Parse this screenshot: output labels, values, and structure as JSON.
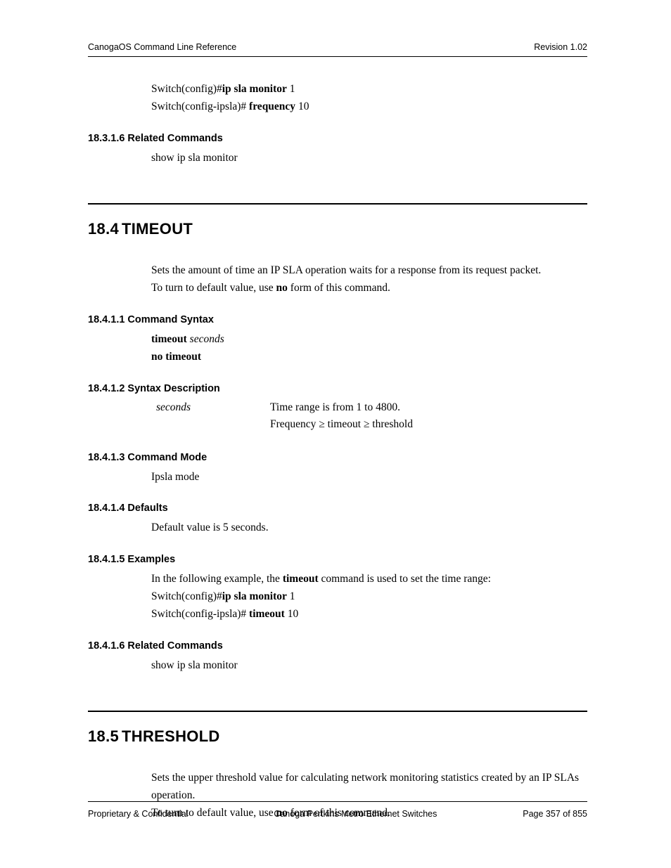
{
  "header": {
    "left": "CanogaOS Command Line Reference",
    "right": "Revision 1.02"
  },
  "footer": {
    "left": "Proprietary & Confidential",
    "center": "Canoga Pertkins Metro Ethernet Switches",
    "right": "Page 357 of 855"
  },
  "prev_example": {
    "line1_prompt": "Switch(config)#",
    "line1_cmd": "ip sla monitor",
    "line1_arg": " 1",
    "line2_prompt": "Switch(config-ipsla)# ",
    "line2_cmd": "frequency",
    "line2_arg": " 10"
  },
  "prev_related": {
    "heading": "18.3.1.6 Related Commands",
    "text": "show ip sla monitor"
  },
  "s184": {
    "heading_num": "18.4",
    "heading_text": "TIMEOUT",
    "intro_line1": "Sets the amount of time an IP SLA operation waits for a response from its request packet.",
    "intro_line2a": "To turn to default value, use ",
    "intro_line2b": "no",
    "intro_line2c": " form of this command.",
    "syntax": {
      "heading": "18.4.1.1 Command Syntax",
      "l1_cmd": "timeout",
      "l1_arg": " seconds",
      "l2": "no timeout"
    },
    "desc": {
      "heading": "18.4.1.2 Syntax Description",
      "param": "seconds",
      "row1": "Time range is from 1 to 4800.",
      "row2": "Frequency ≥ timeout ≥ threshold"
    },
    "mode": {
      "heading": "18.4.1.3 Command Mode",
      "text": "Ipsla mode"
    },
    "defaults": {
      "heading": "18.4.1.4 Defaults",
      "text": "Default value is 5 seconds."
    },
    "examples": {
      "heading": "18.4.1.5 Examples",
      "intro_a": "In the following example, the ",
      "intro_b": "timeout",
      "intro_c": " command is used to set the time range:",
      "line1_prompt": "Switch(config)#",
      "line1_cmd": "ip sla monitor",
      "line1_arg": " 1",
      "line2_prompt": "Switch(config-ipsla)# ",
      "line2_cmd": "timeout",
      "line2_arg": " 10"
    },
    "related": {
      "heading": "18.4.1.6 Related Commands",
      "text": "show ip sla monitor"
    }
  },
  "s185": {
    "heading_num": "18.5",
    "heading_text": "THRESHOLD",
    "intro_line1": "Sets the upper threshold value for calculating network monitoring statistics created by an IP SLAs operation.",
    "intro_line2a": "To turn to default value, use ",
    "intro_line2b": "no",
    "intro_line2c": " form of this command."
  }
}
